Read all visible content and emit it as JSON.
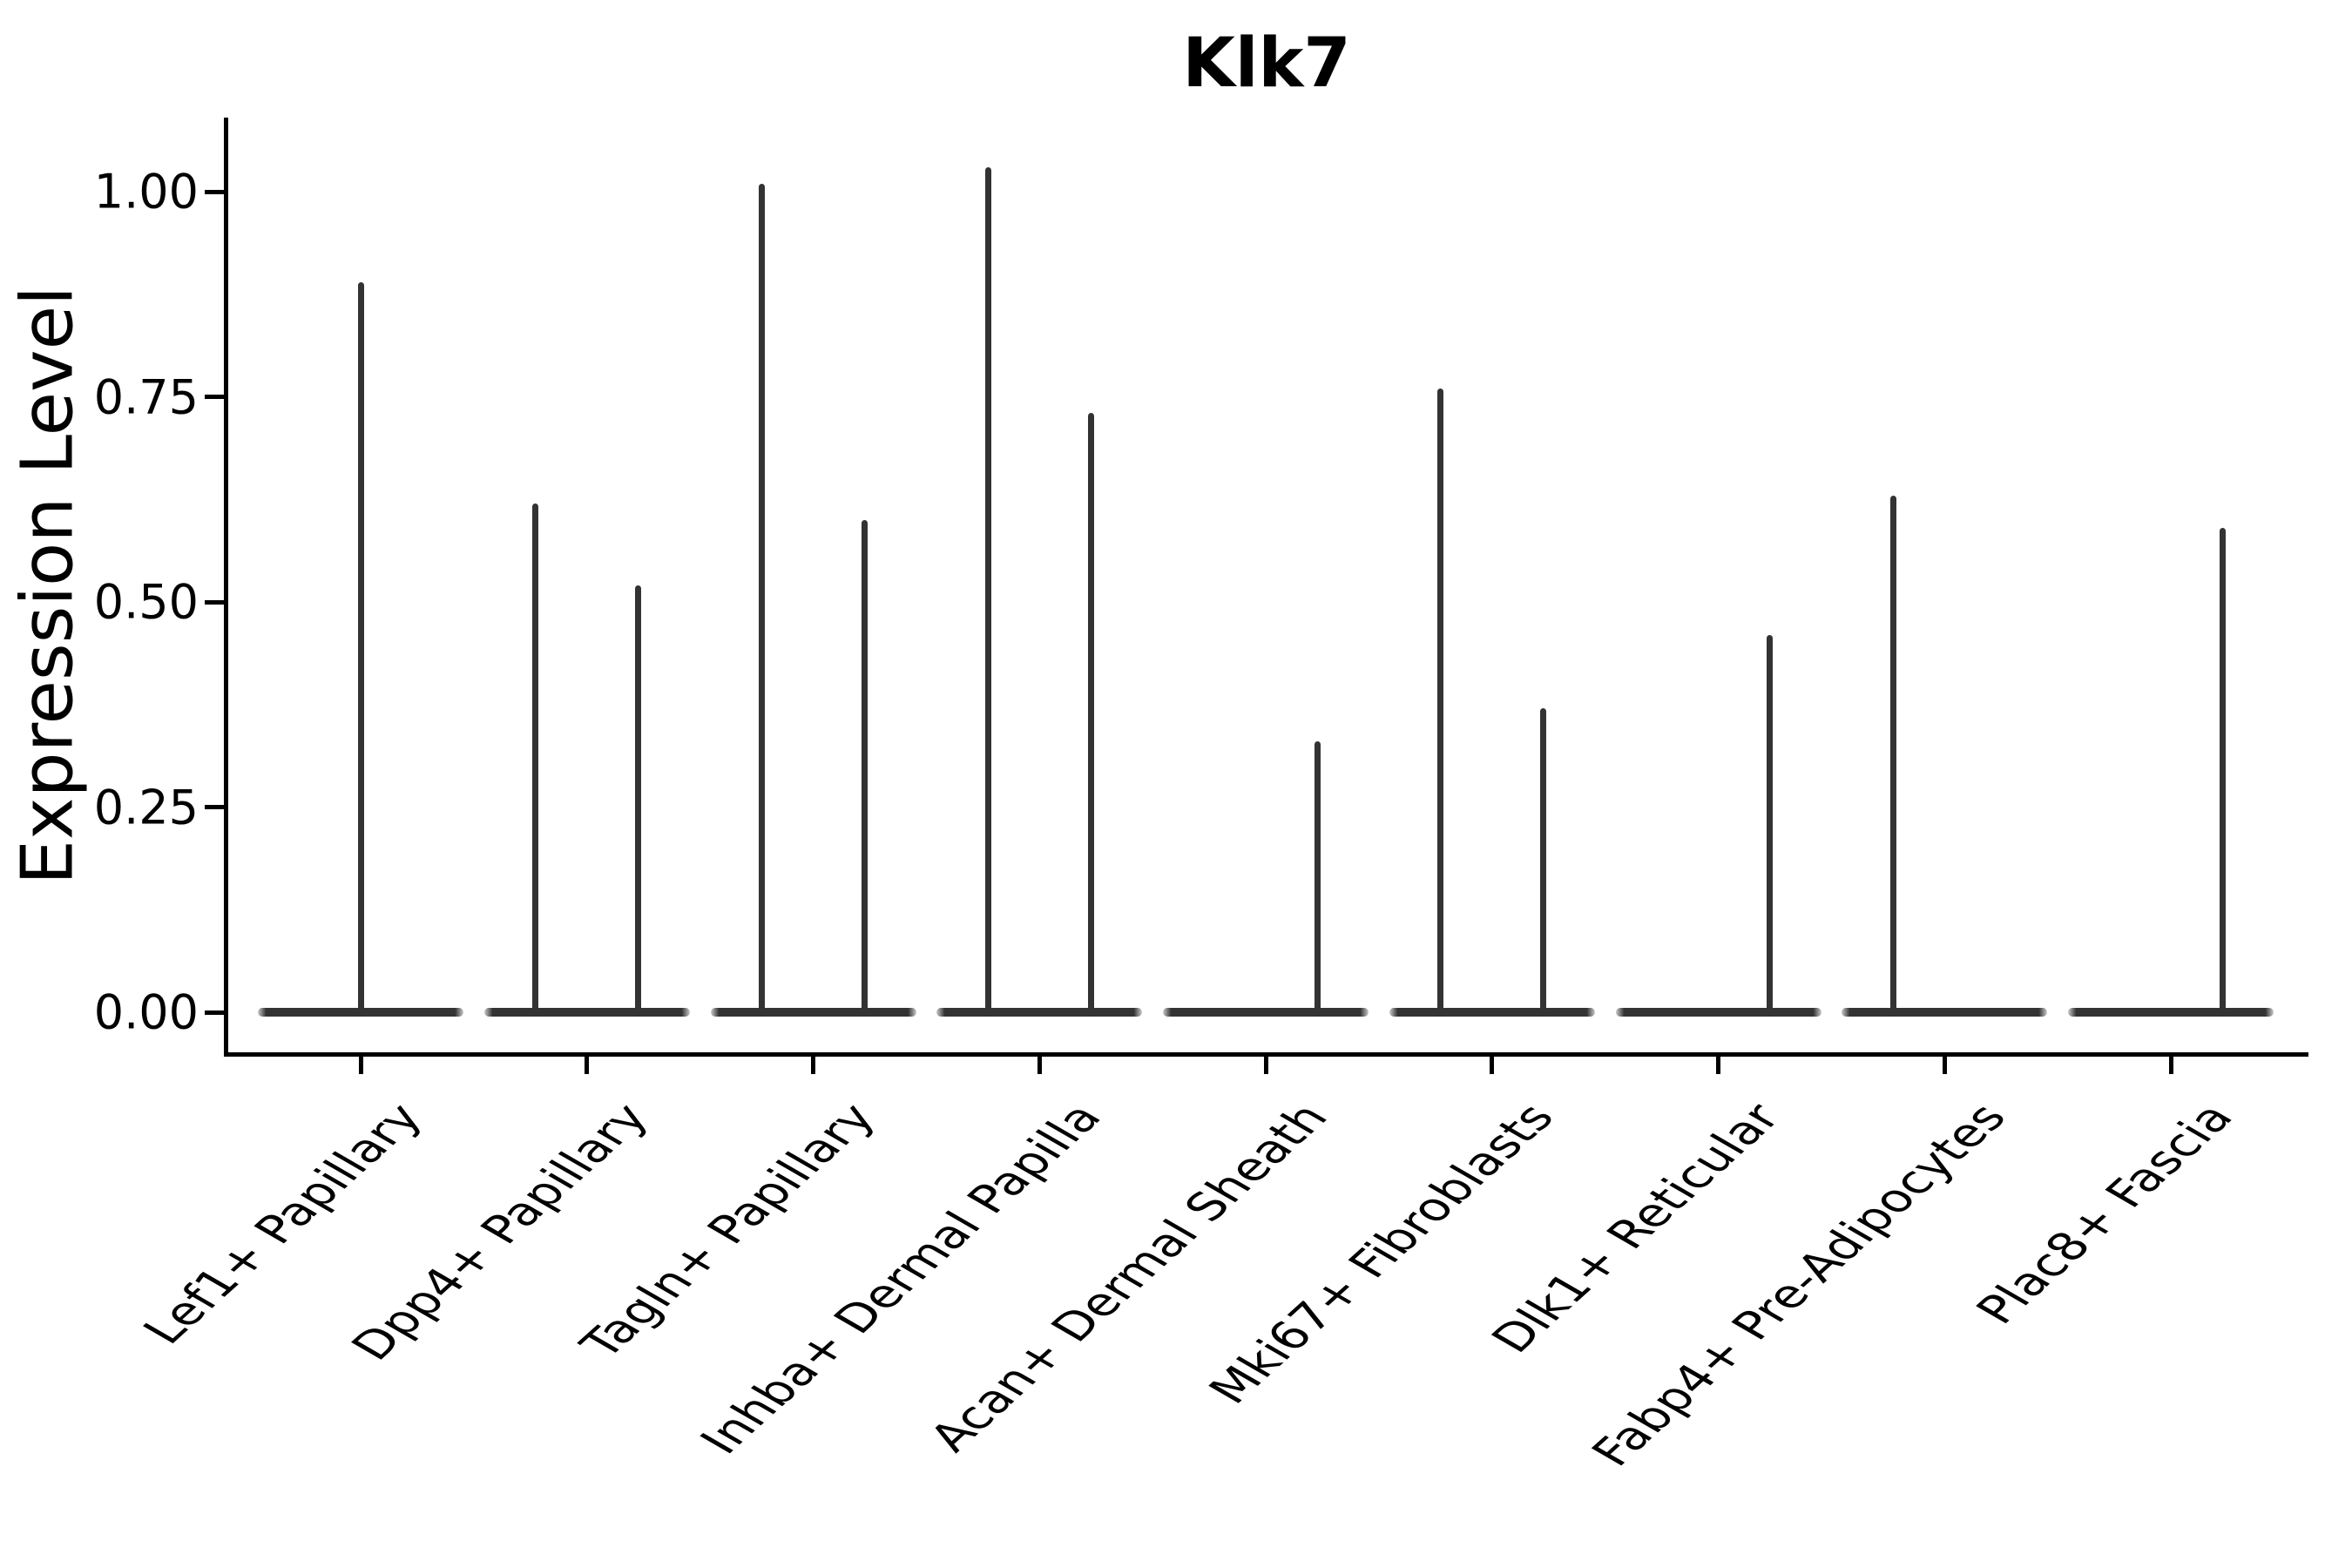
{
  "figure": {
    "background": "#ffffff"
  },
  "chart_data": {
    "type": "violin",
    "title": "Klk7",
    "xlabel": "",
    "ylabel": "Expression Level",
    "ylim": [
      0,
      1.08
    ],
    "grid": false,
    "legend": "none",
    "violin_color": "#333333",
    "axis_color": "#000000",
    "ytick_labels": [
      "0.00",
      "0.25",
      "0.50",
      "0.75",
      "1.00"
    ],
    "ytick_values": [
      0.0,
      0.25,
      0.5,
      0.75,
      1.0
    ],
    "categories": [
      "Lef1+ Papillary",
      "Dpp4+ Papillary",
      "Tagln+ Papillary",
      "Inhba+ Dermal Papilla",
      "Acan+ Dermal Sheath",
      "Mki67+ Fibroblasts",
      "Dlk1+ Reticular",
      "Fabp4+ Pre-Adipocytes",
      "Plac8+ Fascia"
    ],
    "series": [
      {
        "category": "Lef1+ Papillary",
        "baseline": 0.0,
        "spikes": [
          {
            "side": "center",
            "max": 0.89
          }
        ]
      },
      {
        "category": "Dpp4+ Papillary",
        "baseline": 0.0,
        "spikes": [
          {
            "side": "left",
            "max": 0.62
          },
          {
            "side": "right",
            "max": 0.52
          }
        ]
      },
      {
        "category": "Tagln+ Papillary",
        "baseline": 0.0,
        "spikes": [
          {
            "side": "left",
            "max": 1.01
          },
          {
            "side": "right",
            "max": 0.6
          }
        ]
      },
      {
        "category": "Inhba+ Dermal Papilla",
        "baseline": 0.0,
        "spikes": [
          {
            "side": "left",
            "max": 1.03
          },
          {
            "side": "right",
            "max": 0.73
          }
        ]
      },
      {
        "category": "Acan+ Dermal Sheath",
        "baseline": 0.0,
        "spikes": [
          {
            "side": "right",
            "max": 0.33
          }
        ]
      },
      {
        "category": "Mki67+ Fibroblasts",
        "baseline": 0.0,
        "spikes": [
          {
            "side": "left",
            "max": 0.76
          },
          {
            "side": "right",
            "max": 0.37
          }
        ]
      },
      {
        "category": "Dlk1+ Reticular",
        "baseline": 0.0,
        "spikes": [
          {
            "side": "right",
            "max": 0.46
          }
        ]
      },
      {
        "category": "Fabp4+ Pre-Adipocytes",
        "baseline": 0.0,
        "spikes": [
          {
            "side": "left",
            "max": 0.63
          }
        ]
      },
      {
        "category": "Plac8+ Fascia",
        "baseline": 0.0,
        "spikes": [
          {
            "side": "right",
            "max": 0.59
          }
        ]
      }
    ]
  }
}
